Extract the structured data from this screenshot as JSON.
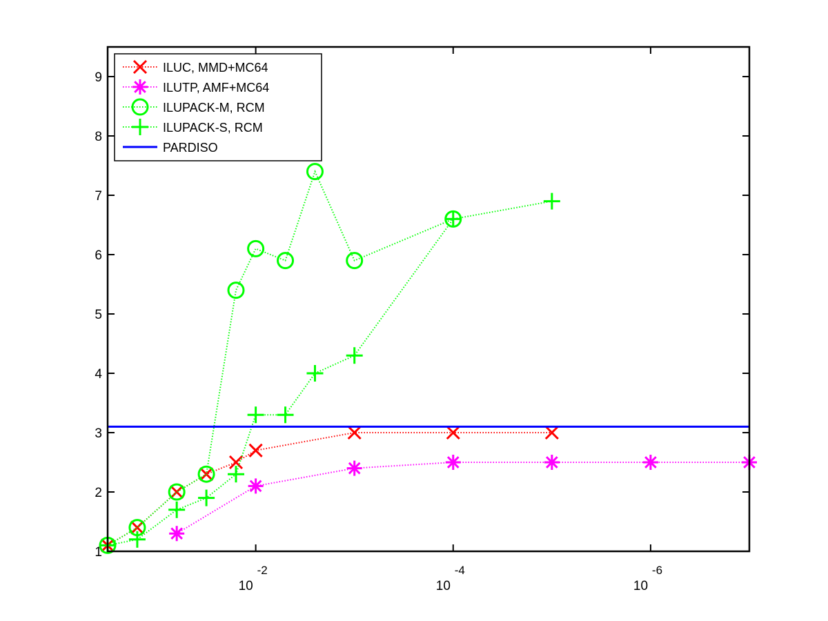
{
  "chart_data": {
    "type": "line",
    "title": "",
    "xlabel": "",
    "ylabel": "",
    "x_scale": "log, reversed (drop tolerance, 10^-0.5 to 10^-7)",
    "xlim": [
      -0.5,
      -7
    ],
    "ylim": [
      1,
      9.5
    ],
    "grid": false,
    "legend_position": "top-left",
    "y_ticks": [
      1,
      2,
      3,
      4,
      5,
      6,
      7,
      8,
      9
    ],
    "x_ticks": [
      {
        "exp": -2,
        "base": "10",
        "sup": "-2"
      },
      {
        "exp": -4,
        "base": "10",
        "sup": "-4"
      },
      {
        "exp": -6,
        "base": "10",
        "sup": "-6"
      }
    ],
    "series": [
      {
        "name": "ILUC, MMD+MC64",
        "color": "#ff0000",
        "marker": "x",
        "line_style": "dotted",
        "points": [
          [
            -0.5,
            1.1
          ],
          [
            -0.8,
            1.4
          ],
          [
            -1.2,
            2.0
          ],
          [
            -1.5,
            2.3
          ],
          [
            -1.8,
            2.5
          ],
          [
            -2.0,
            2.7
          ],
          [
            -3.0,
            3.0
          ],
          [
            -4.0,
            3.0
          ],
          [
            -5.0,
            3.0
          ]
        ]
      },
      {
        "name": "ILUTP, AMF+MC64",
        "color": "#ff00ff",
        "marker": "asterisk",
        "line_style": "dotted",
        "points": [
          [
            -1.2,
            1.3
          ],
          [
            -2.0,
            2.1
          ],
          [
            -3.0,
            2.4
          ],
          [
            -4.0,
            2.5
          ],
          [
            -5.0,
            2.5
          ],
          [
            -6.0,
            2.5
          ],
          [
            -7.0,
            2.5
          ]
        ]
      },
      {
        "name": "ILUPACK-M, RCM",
        "color": "#00ff00",
        "marker": "circle",
        "line_style": "dotted",
        "points": [
          [
            -0.5,
            1.1
          ],
          [
            -0.8,
            1.4
          ],
          [
            -1.2,
            2.0
          ],
          [
            -1.5,
            2.3
          ],
          [
            -1.8,
            5.4
          ],
          [
            -2.0,
            6.1
          ],
          [
            -2.3,
            5.9
          ],
          [
            -2.6,
            7.4
          ],
          [
            -3.0,
            5.9
          ],
          [
            -4.0,
            6.6
          ]
        ]
      },
      {
        "name": "ILUPACK-S, RCM",
        "color": "#00ff00",
        "marker": "plus",
        "line_style": "dotted",
        "points": [
          [
            -0.5,
            1.1
          ],
          [
            -0.8,
            1.2
          ],
          [
            -1.2,
            1.7
          ],
          [
            -1.5,
            1.9
          ],
          [
            -1.8,
            2.3
          ],
          [
            -2.0,
            3.3
          ],
          [
            -2.3,
            3.3
          ],
          [
            -2.6,
            4.0
          ],
          [
            -3.0,
            4.3
          ],
          [
            -4.0,
            6.6
          ],
          [
            -5.0,
            6.9
          ]
        ]
      },
      {
        "name": "PARDISO",
        "color": "#0000ff",
        "marker": "none",
        "line_style": "solid",
        "points": [
          [
            -0.5,
            3.1
          ],
          [
            -7.0,
            3.1
          ]
        ]
      }
    ]
  }
}
